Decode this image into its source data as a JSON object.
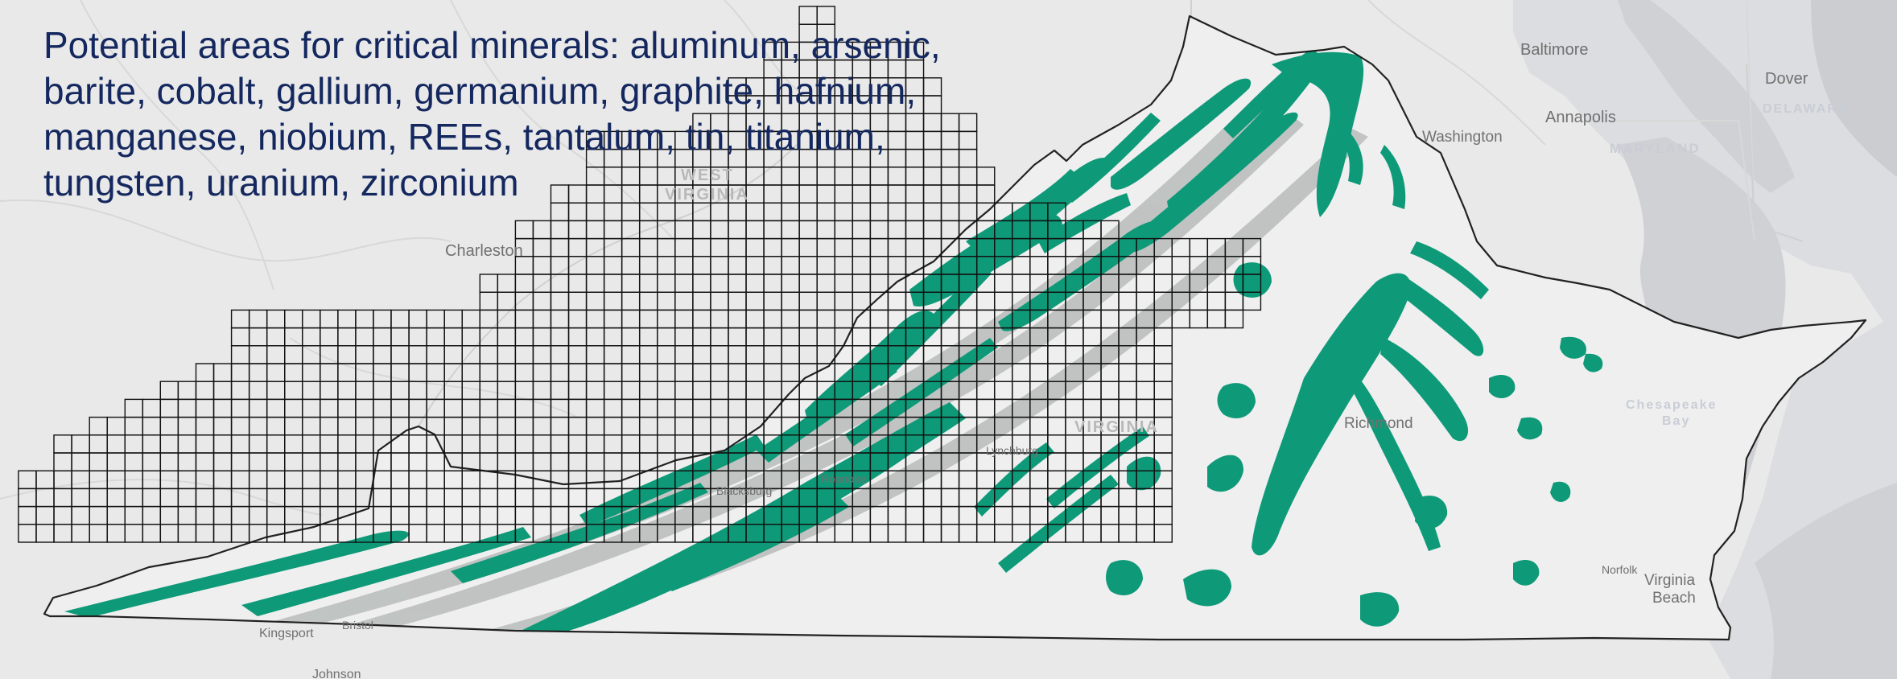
{
  "title": {
    "lines": [
      "Potential areas for critical minerals: aluminum, arsenic,",
      "barite, cobalt, gallium, germanium, graphite, hafnium,",
      "manganese, niobium, REEs, tantalum, tin, titanium,",
      "tungsten, uranium, zirconium"
    ]
  },
  "map": {
    "cities": [
      "Baltimore",
      "Annapolis",
      "Dover",
      "Washington",
      "Charleston",
      "Richmond",
      "Lynchburg",
      "Roanoke",
      "Blacksburg",
      "Kingsport",
      "Bristol",
      "Johnson",
      "Norfolk",
      "Virginia",
      "Beach",
      "Chesapeake",
      "Bay"
    ],
    "states": [
      "WEST",
      "VIRGINIA",
      "VIRGINIA",
      "MARYLAND",
      "DELAWARE"
    ]
  },
  "colors": {
    "mineral_area": "#0e9a78",
    "grid_line": "#111111",
    "background": "#e9e9e9",
    "water": "#d4d6d9",
    "title_text": "#14285f"
  }
}
